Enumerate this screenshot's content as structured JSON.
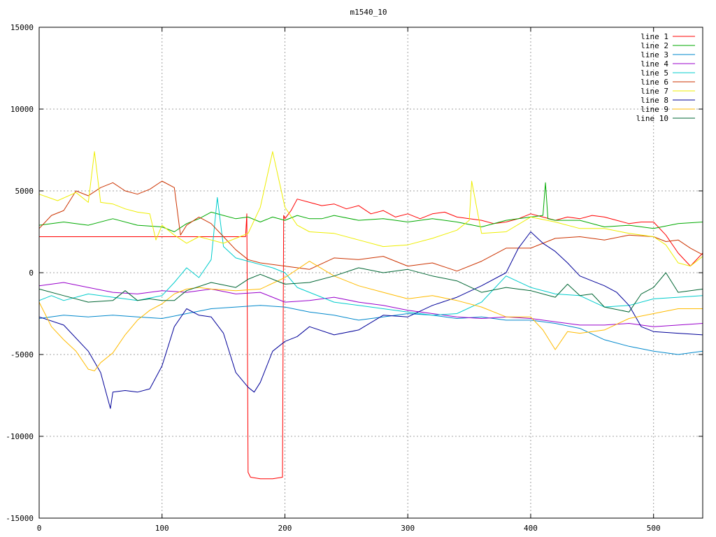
{
  "chart_data": {
    "type": "line",
    "title": "m1540_10",
    "xlim": [
      0,
      540
    ],
    "ylim": [
      -15000,
      15000
    ],
    "x_ticks": [
      0,
      100,
      200,
      300,
      400,
      500
    ],
    "y_ticks": [
      -15000,
      -10000,
      -5000,
      0,
      5000,
      10000,
      15000
    ],
    "x_tick_labels": [
      "0",
      "100",
      "200",
      "300",
      "400",
      "500"
    ],
    "y_tick_labels": [
      "-15000",
      "-10000",
      "-5000",
      "0",
      "5000",
      "10000",
      "15000"
    ],
    "grid": true,
    "legend_position": "top-right",
    "series": [
      {
        "name": "line 1",
        "color": "#ff0000",
        "x": [
          0,
          168,
          169,
          170,
          172,
          180,
          190,
          198,
          199,
          200,
          205,
          210,
          220,
          230,
          240,
          250,
          260,
          270,
          280,
          290,
          300,
          310,
          320,
          330,
          340,
          350,
          360,
          370,
          380,
          390,
          400,
          410,
          420,
          430,
          440,
          450,
          460,
          470,
          480,
          490,
          500,
          510,
          520,
          530,
          540
        ],
        "y": [
          2200,
          2200,
          3600,
          -12200,
          -12500,
          -12600,
          -12600,
          -12500,
          3500,
          3300,
          3800,
          4500,
          4300,
          4100,
          4200,
          3900,
          4100,
          3600,
          3800,
          3400,
          3600,
          3300,
          3600,
          3700,
          3400,
          3300,
          3200,
          3000,
          3100,
          3300,
          3600,
          3400,
          3200,
          3400,
          3300,
          3500,
          3400,
          3200,
          3000,
          3100,
          3100,
          2300,
          1200,
          400,
          1200
        ]
      },
      {
        "name": "line 2",
        "color": "#00aa00",
        "x": [
          0,
          20,
          40,
          60,
          80,
          100,
          110,
          120,
          130,
          140,
          150,
          160,
          170,
          180,
          190,
          200,
          210,
          220,
          230,
          240,
          260,
          280,
          300,
          320,
          340,
          360,
          380,
          400,
          410,
          412,
          414,
          420,
          440,
          460,
          480,
          500,
          520,
          540
        ],
        "y": [
          2900,
          3100,
          2900,
          3300,
          2900,
          2800,
          2500,
          3000,
          3300,
          3700,
          3500,
          3300,
          3400,
          3100,
          3400,
          3200,
          3500,
          3300,
          3300,
          3500,
          3200,
          3300,
          3100,
          3300,
          3100,
          2800,
          3200,
          3400,
          3500,
          5500,
          3300,
          3200,
          3200,
          2800,
          2900,
          2700,
          3000,
          3100
        ]
      },
      {
        "name": "line 3",
        "color": "#0088cc",
        "x": [
          0,
          20,
          40,
          60,
          80,
          100,
          120,
          140,
          160,
          180,
          200,
          220,
          240,
          260,
          280,
          300,
          320,
          340,
          360,
          380,
          400,
          420,
          440,
          460,
          480,
          500,
          520,
          540
        ],
        "y": [
          -2800,
          -2600,
          -2700,
          -2600,
          -2700,
          -2800,
          -2500,
          -2200,
          -2100,
          -2000,
          -2100,
          -2400,
          -2600,
          -2900,
          -2700,
          -2500,
          -2600,
          -2800,
          -2700,
          -2900,
          -2900,
          -3100,
          -3400,
          -4100,
          -4500,
          -4800,
          -5000,
          -4800
        ]
      },
      {
        "name": "line 4",
        "color": "#9900cc",
        "x": [
          0,
          20,
          40,
          60,
          80,
          100,
          120,
          140,
          160,
          180,
          200,
          220,
          240,
          260,
          280,
          300,
          320,
          340,
          360,
          380,
          400,
          420,
          440,
          460,
          480,
          500,
          520,
          540
        ],
        "y": [
          -800,
          -600,
          -900,
          -1200,
          -1300,
          -1100,
          -1200,
          -1000,
          -1300,
          -1200,
          -1800,
          -1700,
          -1500,
          -1800,
          -2000,
          -2300,
          -2500,
          -2700,
          -2800,
          -2700,
          -2800,
          -3000,
          -3200,
          -3200,
          -3100,
          -3300,
          -3200,
          -3100
        ]
      },
      {
        "name": "line 5",
        "color": "#00cccc",
        "x": [
          0,
          10,
          20,
          40,
          60,
          80,
          100,
          110,
          120,
          130,
          140,
          145,
          150,
          160,
          170,
          180,
          190,
          200,
          210,
          220,
          240,
          260,
          280,
          300,
          320,
          340,
          360,
          380,
          400,
          420,
          440,
          460,
          480,
          500,
          520,
          540
        ],
        "y": [
          -1700,
          -1400,
          -1700,
          -1300,
          -1500,
          -1700,
          -1400,
          -600,
          300,
          -300,
          800,
          4600,
          1600,
          900,
          700,
          500,
          300,
          0,
          -900,
          -1200,
          -1800,
          -2000,
          -2200,
          -2400,
          -2600,
          -2500,
          -1800,
          -200,
          -900,
          -1300,
          -1400,
          -2100,
          -2000,
          -1600,
          -1500,
          -1400
        ]
      },
      {
        "name": "line 6",
        "color": "#cc3300",
        "x": [
          0,
          10,
          20,
          30,
          40,
          50,
          60,
          70,
          80,
          90,
          100,
          110,
          115,
          120,
          130,
          140,
          150,
          160,
          170,
          180,
          200,
          220,
          240,
          260,
          280,
          300,
          320,
          340,
          360,
          380,
          400,
          420,
          440,
          460,
          480,
          500,
          510,
          520,
          530,
          540
        ],
        "y": [
          2700,
          3500,
          3800,
          5000,
          4700,
          5200,
          5500,
          5000,
          4800,
          5100,
          5600,
          5200,
          2300,
          2900,
          3400,
          3000,
          2200,
          1400,
          800,
          600,
          400,
          200,
          900,
          800,
          1000,
          400,
          600,
          100,
          700,
          1500,
          1500,
          2100,
          2200,
          2000,
          2300,
          2200,
          1900,
          2000,
          1500,
          1100
        ]
      },
      {
        "name": "line 7",
        "color": "#eeee00",
        "x": [
          0,
          15,
          30,
          40,
          45,
          50,
          60,
          70,
          80,
          90,
          95,
          100,
          110,
          120,
          130,
          140,
          150,
          160,
          170,
          180,
          190,
          200,
          210,
          220,
          240,
          260,
          280,
          300,
          320,
          340,
          350,
          352,
          360,
          380,
          400,
          420,
          440,
          460,
          480,
          500,
          510,
          520,
          530,
          540
        ],
        "y": [
          4800,
          4400,
          4900,
          4300,
          7400,
          4300,
          4200,
          3900,
          3700,
          3600,
          2000,
          2900,
          2300,
          1800,
          2200,
          2000,
          1800,
          2100,
          2400,
          4000,
          7400,
          4000,
          2900,
          2500,
          2400,
          2000,
          1600,
          1700,
          2100,
          2600,
          3200,
          5600,
          2400,
          2500,
          3400,
          3100,
          2700,
          2700,
          2400,
          2200,
          1700,
          600,
          400,
          1000
        ]
      },
      {
        "name": "line 8",
        "color": "#000099",
        "x": [
          0,
          20,
          40,
          50,
          58,
          60,
          70,
          80,
          90,
          100,
          110,
          120,
          130,
          140,
          150,
          160,
          170,
          175,
          180,
          190,
          200,
          210,
          220,
          240,
          260,
          280,
          300,
          320,
          340,
          360,
          380,
          390,
          400,
          410,
          420,
          430,
          440,
          450,
          460,
          470,
          480,
          490,
          500,
          520,
          540
        ],
        "y": [
          -2700,
          -3200,
          -4800,
          -6100,
          -8300,
          -7300,
          -7200,
          -7300,
          -7100,
          -5700,
          -3300,
          -2200,
          -2600,
          -2700,
          -3700,
          -6100,
          -7000,
          -7300,
          -6700,
          -4800,
          -4200,
          -3900,
          -3300,
          -3800,
          -3500,
          -2600,
          -2700,
          -2000,
          -1500,
          -800,
          0,
          1500,
          2500,
          1800,
          1300,
          600,
          -200,
          -500,
          -800,
          -1200,
          -2000,
          -3300,
          -3600,
          -3700,
          -3800
        ]
      },
      {
        "name": "line 9",
        "color": "#ffbb00",
        "x": [
          0,
          10,
          20,
          30,
          40,
          45,
          50,
          60,
          70,
          80,
          90,
          100,
          110,
          120,
          130,
          140,
          160,
          180,
          200,
          220,
          240,
          260,
          280,
          300,
          320,
          340,
          360,
          380,
          400,
          410,
          420,
          430,
          440,
          460,
          480,
          500,
          520,
          540
        ],
        "y": [
          -1800,
          -3300,
          -4100,
          -4800,
          -5900,
          -6000,
          -5500,
          -4900,
          -3800,
          -2900,
          -2300,
          -1900,
          -1300,
          -1000,
          -900,
          -1000,
          -1100,
          -1000,
          -300,
          700,
          -200,
          -800,
          -1200,
          -1600,
          -1400,
          -1700,
          -2100,
          -2700,
          -2700,
          -3500,
          -4700,
          -3600,
          -3700,
          -3500,
          -2800,
          -2500,
          -2200,
          -2200
        ]
      },
      {
        "name": "line 10",
        "color": "#006633",
        "x": [
          0,
          20,
          40,
          60,
          70,
          80,
          90,
          100,
          110,
          120,
          140,
          160,
          170,
          180,
          200,
          220,
          240,
          260,
          280,
          300,
          320,
          340,
          360,
          380,
          400,
          420,
          430,
          440,
          450,
          460,
          480,
          490,
          500,
          510,
          520,
          540
        ],
        "y": [
          -1000,
          -1400,
          -1800,
          -1700,
          -1100,
          -1700,
          -1600,
          -1700,
          -1700,
          -1100,
          -600,
          -900,
          -400,
          -100,
          -700,
          -600,
          -200,
          300,
          0,
          200,
          -200,
          -500,
          -1200,
          -900,
          -1100,
          -1500,
          -700,
          -1400,
          -1300,
          -2100,
          -2400,
          -1300,
          -900,
          0,
          -1200,
          -1000
        ]
      }
    ]
  }
}
